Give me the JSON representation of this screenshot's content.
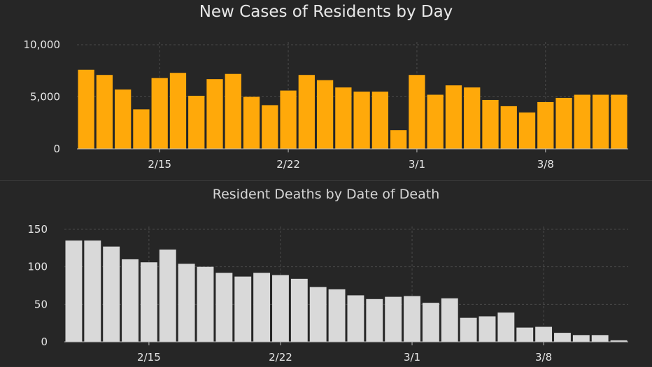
{
  "chart_data": [
    {
      "type": "bar",
      "title": "New Cases of Residents by Day",
      "xlabel": "",
      "ylabel": "",
      "ylim": [
        0,
        10000
      ],
      "yticks": [
        {
          "value": 0,
          "label": "0"
        },
        {
          "value": 5000,
          "label": "5,000"
        },
        {
          "value": 10000,
          "label": "10,000"
        }
      ],
      "xticks": [
        {
          "index": 4,
          "label": "2/15"
        },
        {
          "index": 11,
          "label": "2/22"
        },
        {
          "index": 18,
          "label": "3/1"
        },
        {
          "index": 25,
          "label": "3/8"
        }
      ],
      "values": [
        7600,
        7100,
        5700,
        3800,
        6800,
        7300,
        5100,
        6700,
        7200,
        5000,
        4200,
        5600,
        7100,
        6600,
        5900,
        5500,
        5500,
        1800,
        7100,
        5200,
        6100,
        5900,
        4700,
        4100,
        3500,
        4500,
        4900,
        5200,
        5200,
        5200
      ],
      "color": "#ffa90a",
      "grid": true
    },
    {
      "type": "bar",
      "title": "Resident Deaths by Date of Death",
      "xlabel": "",
      "ylabel": "",
      "ylim": [
        0,
        150
      ],
      "yticks": [
        {
          "value": 0,
          "label": "0"
        },
        {
          "value": 50,
          "label": "50"
        },
        {
          "value": 100,
          "label": "100"
        },
        {
          "value": 150,
          "label": "150"
        }
      ],
      "xticks": [
        {
          "index": 4,
          "label": "2/15"
        },
        {
          "index": 11,
          "label": "2/22"
        },
        {
          "index": 18,
          "label": "3/1"
        },
        {
          "index": 25,
          "label": "3/8"
        }
      ],
      "values": [
        135,
        135,
        127,
        110,
        106,
        123,
        104,
        100,
        92,
        87,
        92,
        89,
        84,
        73,
        70,
        62,
        57,
        60,
        61,
        52,
        58,
        32,
        34,
        39,
        19,
        20,
        12,
        9,
        9,
        2
      ],
      "color": "#d9d9d9",
      "grid": true
    }
  ]
}
